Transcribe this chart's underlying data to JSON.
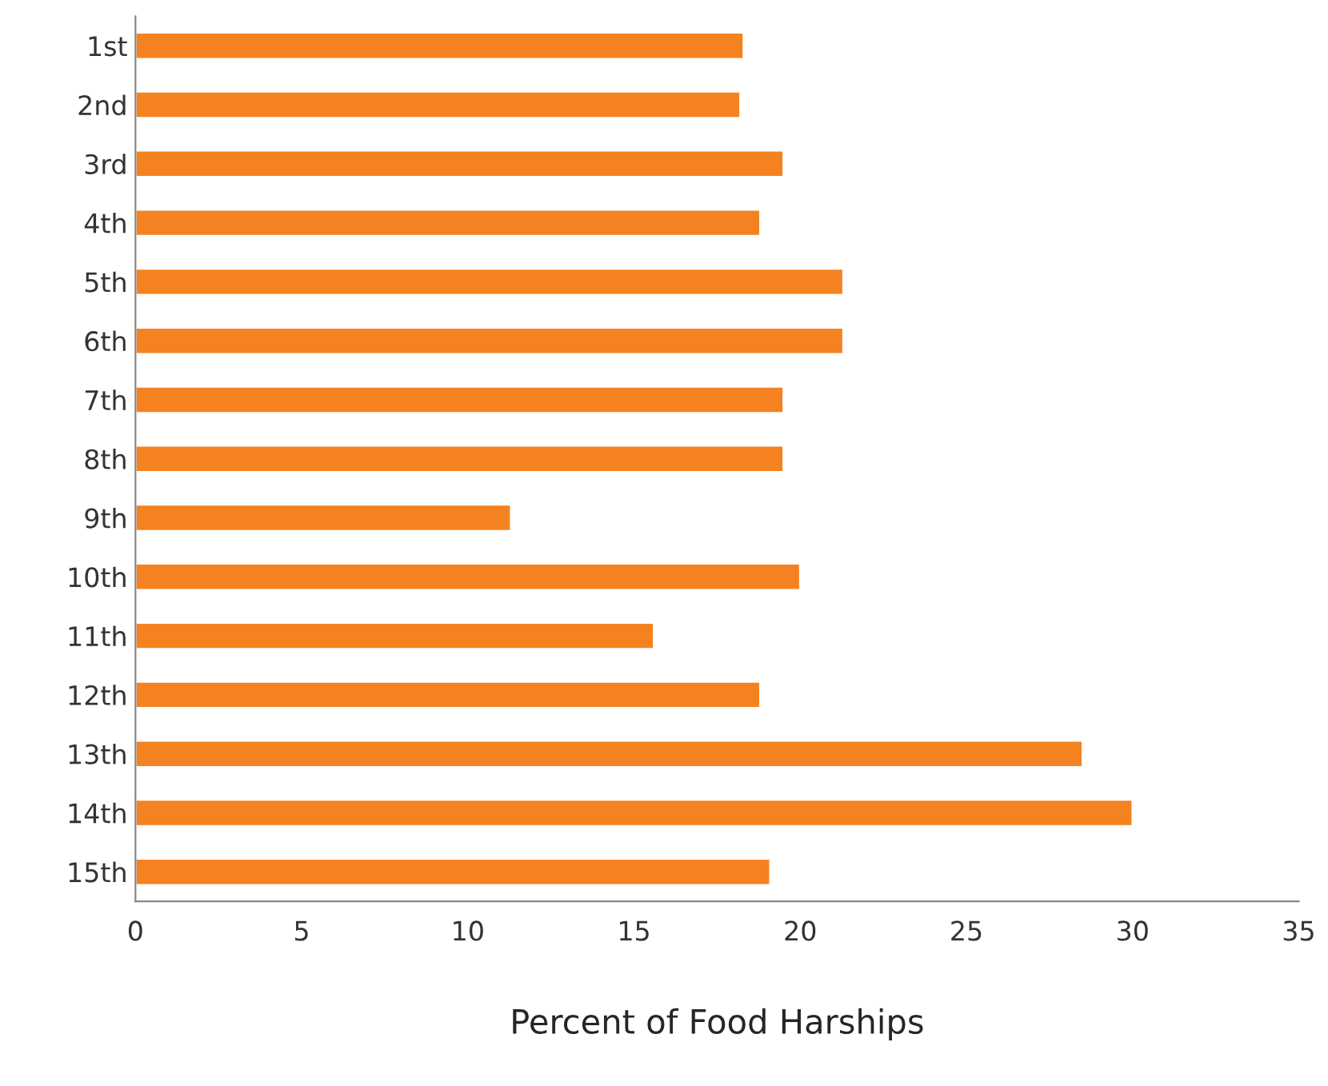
{
  "chart_data": {
    "type": "bar",
    "orientation": "horizontal",
    "xlabel": "Percent of Food Harships",
    "categories": [
      "1st",
      "2nd",
      "3rd",
      "4th",
      "5th",
      "6th",
      "7th",
      "8th",
      "9th",
      "10th",
      "11th",
      "12th",
      "13th",
      "14th",
      "15th"
    ],
    "values": [
      18.3,
      18.2,
      19.5,
      18.8,
      21.3,
      21.3,
      19.5,
      19.5,
      11.3,
      20.0,
      15.6,
      18.8,
      28.5,
      30.0,
      19.1
    ],
    "color": "#f58220",
    "xlim": [
      0,
      35
    ],
    "xticks": [
      0,
      5,
      10,
      15,
      20,
      25,
      30,
      35
    ],
    "grid": false
  }
}
